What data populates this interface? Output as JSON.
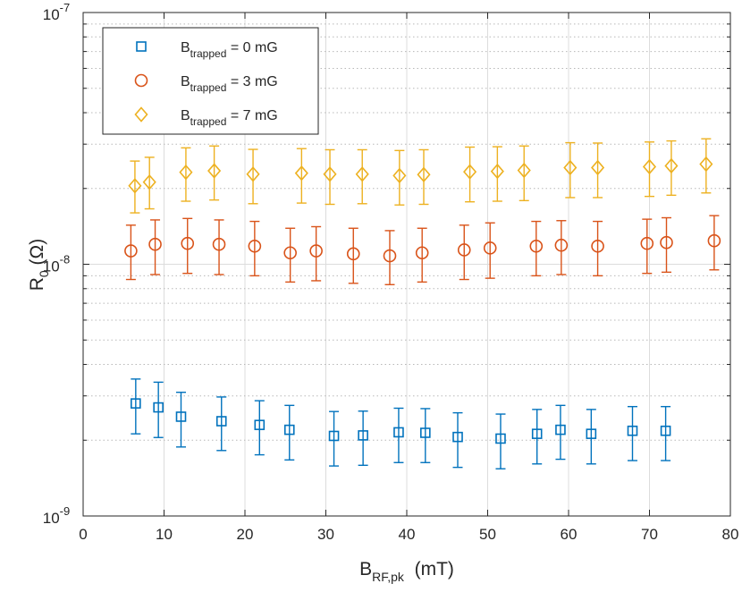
{
  "chart_data": {
    "type": "scatter",
    "title": "",
    "xlabel": {
      "main": "B",
      "sub": "RF,pk",
      "unit": "(mT)"
    },
    "ylabel": {
      "main": "R",
      "sub": "0",
      "unit": "(Ω)"
    },
    "xlim": [
      0,
      80
    ],
    "ylim": [
      1e-09,
      1e-07
    ],
    "yscale": "log",
    "grid": true,
    "minor_grid": "y",
    "legend_position": "top-left",
    "x_ticks": [
      0,
      10,
      20,
      30,
      40,
      50,
      60,
      70,
      80
    ],
    "x_tick_labels": [
      "0",
      "10",
      "20",
      "30",
      "40",
      "50",
      "60",
      "70",
      "80"
    ],
    "y_ticks": [
      {
        "value": 1e-09,
        "base": "10",
        "exp": "-9"
      },
      {
        "value": 1e-08,
        "base": "10",
        "exp": "-8"
      },
      {
        "value": 1e-07,
        "base": "10",
        "exp": "-7"
      }
    ],
    "series": [
      {
        "name": "B_trapped = 0 mG",
        "legend_main": "B",
        "legend_sub": "trapped",
        "legend_value": " = 0 mG",
        "marker": "square",
        "color": "#0072BD",
        "x": [
          6.5,
          9.3,
          12.1,
          17.1,
          21.8,
          25.5,
          31.0,
          34.6,
          39.0,
          42.3,
          46.3,
          51.6,
          56.1,
          59.0,
          62.8,
          67.9,
          72.0
        ],
        "y": [
          2.8e-09,
          2.7e-09,
          2.48e-09,
          2.38e-09,
          2.3e-09,
          2.2e-09,
          2.08e-09,
          2.09e-09,
          2.15e-09,
          2.14e-09,
          2.06e-09,
          2.03e-09,
          2.12e-09,
          2.2e-09,
          2.12e-09,
          2.18e-09,
          2.18e-09
        ],
        "y_low": [
          2.12e-09,
          2.05e-09,
          1.88e-09,
          1.82e-09,
          1.75e-09,
          1.67e-09,
          1.58e-09,
          1.59e-09,
          1.63e-09,
          1.63e-09,
          1.56e-09,
          1.54e-09,
          1.61e-09,
          1.68e-09,
          1.61e-09,
          1.66e-09,
          1.66e-09
        ],
        "y_high": [
          3.5e-09,
          3.4e-09,
          3.1e-09,
          2.97e-09,
          2.87e-09,
          2.75e-09,
          2.6e-09,
          2.61e-09,
          2.68e-09,
          2.67e-09,
          2.57e-09,
          2.54e-09,
          2.65e-09,
          2.75e-09,
          2.65e-09,
          2.72e-09,
          2.72e-09
        ]
      },
      {
        "name": "B_trapped = 3 mG",
        "legend_main": "B",
        "legend_sub": "trapped",
        "legend_value": " = 3 mG",
        "marker": "circle",
        "color": "#D95319",
        "x": [
          5.9,
          8.9,
          12.9,
          16.8,
          21.2,
          25.6,
          28.8,
          33.4,
          37.9,
          41.9,
          47.1,
          50.3,
          56.0,
          59.1,
          63.6,
          69.7,
          72.1,
          78.0
        ],
        "y": [
          1.13e-08,
          1.2e-08,
          1.21e-08,
          1.2e-08,
          1.18e-08,
          1.11e-08,
          1.13e-08,
          1.1e-08,
          1.08e-08,
          1.11e-08,
          1.14e-08,
          1.16e-08,
          1.18e-08,
          1.19e-08,
          1.18e-08,
          1.21e-08,
          1.22e-08,
          1.24e-08
        ],
        "y_low": [
          8.7e-09,
          9.1e-09,
          9.2e-09,
          9.1e-09,
          9e-09,
          8.5e-09,
          8.6e-09,
          8.4e-09,
          8.3e-09,
          8.5e-09,
          8.7e-09,
          8.8e-09,
          9e-09,
          9.1e-09,
          9e-09,
          9.2e-09,
          9.3e-09,
          9.5e-09
        ],
        "y_high": [
          1.43e-08,
          1.5e-08,
          1.52e-08,
          1.5e-08,
          1.48e-08,
          1.39e-08,
          1.41e-08,
          1.39e-08,
          1.36e-08,
          1.39e-08,
          1.43e-08,
          1.46e-08,
          1.48e-08,
          1.49e-08,
          1.48e-08,
          1.51e-08,
          1.53e-08,
          1.56e-08
        ]
      },
      {
        "name": "B_trapped = 7 mG",
        "legend_main": "B",
        "legend_sub": "trapped",
        "legend_value": " = 7 mG",
        "marker": "diamond",
        "color": "#EDB120",
        "x": [
          6.4,
          8.2,
          12.7,
          16.2,
          21.0,
          27.0,
          30.5,
          34.5,
          39.1,
          42.1,
          47.8,
          51.2,
          54.5,
          60.2,
          63.6,
          70.0,
          72.7,
          77.0
        ],
        "y": [
          2.05e-08,
          2.12e-08,
          2.32e-08,
          2.35e-08,
          2.28e-08,
          2.3e-08,
          2.28e-08,
          2.28e-08,
          2.25e-08,
          2.27e-08,
          2.33e-08,
          2.34e-08,
          2.36e-08,
          2.42e-08,
          2.42e-08,
          2.44e-08,
          2.46e-08,
          2.5e-08
        ],
        "y_low": [
          1.6e-08,
          1.66e-08,
          1.78e-08,
          1.8e-08,
          1.74e-08,
          1.75e-08,
          1.73e-08,
          1.74e-08,
          1.72e-08,
          1.73e-08,
          1.77e-08,
          1.78e-08,
          1.79e-08,
          1.84e-08,
          1.84e-08,
          1.86e-08,
          1.88e-08,
          1.92e-08
        ],
        "y_high": [
          2.57e-08,
          2.66e-08,
          2.9e-08,
          2.95e-08,
          2.86e-08,
          2.88e-08,
          2.85e-08,
          2.85e-08,
          2.83e-08,
          2.85e-08,
          2.92e-08,
          2.93e-08,
          2.95e-08,
          3.04e-08,
          3.03e-08,
          3.06e-08,
          3.09e-08,
          3.15e-08
        ]
      }
    ]
  }
}
